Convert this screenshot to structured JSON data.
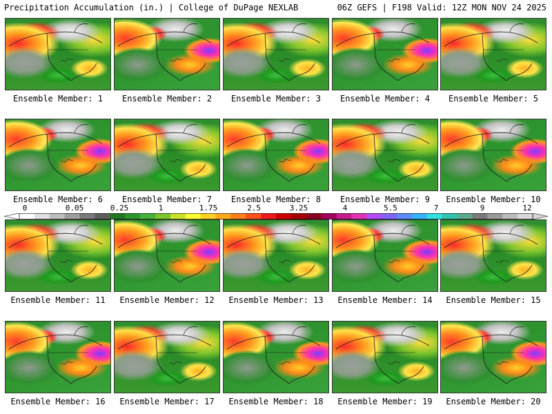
{
  "header": {
    "left": "Precipitation Accumulation (in.) | College of DuPage NEXLAB",
    "right": "06Z GEFS | F198 Valid: 12Z MON NOV 24 2025"
  },
  "panels": [
    {
      "caption": "Ensemble Member: 1"
    },
    {
      "caption": "Ensemble Member: 2"
    },
    {
      "caption": "Ensemble Member: 3"
    },
    {
      "caption": "Ensemble Member: 4"
    },
    {
      "caption": "Ensemble Member: 5"
    },
    {
      "caption": "Ensemble Member: 6"
    },
    {
      "caption": "Ensemble Member: 7"
    },
    {
      "caption": "Ensemble Member: 8"
    },
    {
      "caption": "Ensemble Member: 9"
    },
    {
      "caption": "Ensemble Member: 10"
    },
    {
      "caption": "Ensemble Member: 11"
    },
    {
      "caption": "Ensemble Member: 12"
    },
    {
      "caption": "Ensemble Member: 13"
    },
    {
      "caption": "Ensemble Member: 14"
    },
    {
      "caption": "Ensemble Member: 15"
    },
    {
      "caption": "Ensemble Member: 16"
    },
    {
      "caption": "Ensemble Member: 17"
    },
    {
      "caption": "Ensemble Member: 18"
    },
    {
      "caption": "Ensemble Member: 19"
    },
    {
      "caption": "Ensemble Member: 20"
    }
  ],
  "colorbar": {
    "tick_labels": [
      "0",
      "0.05",
      "0.25",
      "1",
      "1.75",
      "2.5",
      "3.25",
      "4",
      "5.5",
      "7",
      "9",
      "12"
    ],
    "colors": [
      "#ffffff",
      "#e0e0e0",
      "#bdbdbd",
      "#9e9e9e",
      "#7a7a7a",
      "#5e5e5e",
      "#1f7a1f",
      "#2c962c",
      "#47b13a",
      "#7cc42c",
      "#c8e02a",
      "#ffff33",
      "#ffd21f",
      "#ffaa1a",
      "#ff7f1a",
      "#ff4f1a",
      "#ee1c1c",
      "#cc0000",
      "#a80000",
      "#8a0020",
      "#a0005a",
      "#c41a8a",
      "#e033b5",
      "#b34dff",
      "#7f66ff",
      "#5a8cff",
      "#33b5ff",
      "#33e0e0",
      "#33c4b0",
      "#5aaa8c",
      "#7a7a7a",
      "#9a9a9a",
      "#bcbcbc",
      "#d8d8d8"
    ]
  }
}
